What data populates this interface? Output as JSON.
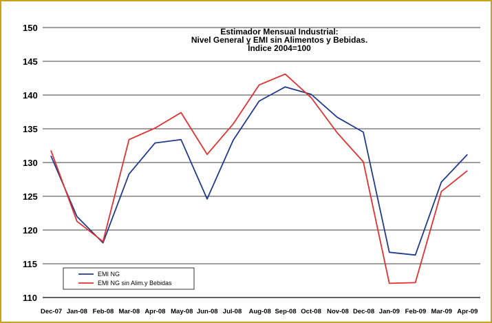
{
  "chart_data": {
    "type": "line",
    "title_lines": [
      "Estimador Mensual Industrial:",
      "Nivel General y EMI sin Alimentos y Bebidas.",
      "Índice 2004=100"
    ],
    "xlabel": "",
    "ylabel": "",
    "categories": [
      "Dec-07",
      "Jan-08",
      "Feb-08",
      "Mar-08",
      "Apr-08",
      "May-08",
      "Jun-08",
      "Jul-08",
      "Aug-08",
      "Sep-08",
      "Oct-08",
      "Nov-08",
      "Dec-08",
      "Jan-09",
      "Feb-09",
      "Mar-09",
      "Apr-09"
    ],
    "yticks": [
      110,
      115,
      120,
      125,
      130,
      135,
      140,
      145,
      150
    ],
    "ylim": [
      110,
      150
    ],
    "grid": true,
    "legend_position": "bottom-left",
    "series": [
      {
        "name": "EMI NG",
        "color": "#1f3a8c",
        "values": [
          131.0,
          122.0,
          118.1,
          128.3,
          132.9,
          133.4,
          124.6,
          133.3,
          139.1,
          141.2,
          140.1,
          136.7,
          134.5,
          116.7,
          116.3,
          127.1,
          131.2
        ]
      },
      {
        "name": "EMI NG sin Alim.y Bebidas",
        "color": "#e03030",
        "values": [
          131.8,
          121.3,
          118.3,
          133.4,
          135.1,
          137.4,
          131.2,
          135.7,
          141.5,
          143.1,
          139.6,
          134.4,
          130.1,
          112.1,
          112.2,
          125.7,
          128.8
        ]
      }
    ]
  }
}
